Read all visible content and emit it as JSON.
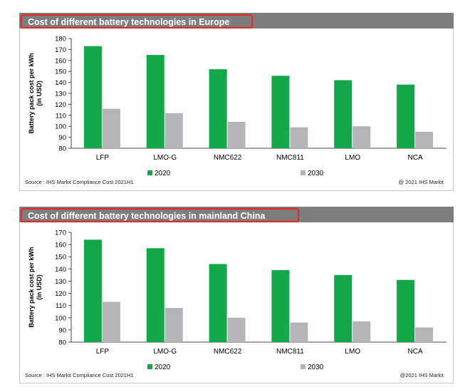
{
  "colors": {
    "series_2020": "#12a84a",
    "series_2030": "#b4b4b6",
    "title_bar": "#7d7d7d",
    "highlight": "#e8262a"
  },
  "charts": [
    {
      "source": "Source : IHS Markit Compliance Cost 2021H1",
      "copyright": "@ 2021 IHS Markit"
    },
    {
      "source": "Source : IHS Markit Compliance Cost 2021H1",
      "copyright": "@2021 IHS Markit"
    }
  ],
  "chart_data": [
    {
      "type": "bar",
      "title": "Cost of different battery technologies in Europe",
      "ylabel": "Battery pack cost per kWh\n(in USD)",
      "categories": [
        "LFP",
        "LMO-G",
        "NMC622",
        "NMC811",
        "LMO",
        "NCA"
      ],
      "series": [
        {
          "name": "2020",
          "values": [
            173,
            165,
            152,
            146,
            142,
            138
          ]
        },
        {
          "name": "2030",
          "values": [
            116,
            112,
            104,
            99,
            100,
            95
          ]
        }
      ],
      "ylim": [
        80,
        180
      ],
      "yticks": [
        80,
        90,
        100,
        110,
        120,
        130,
        140,
        150,
        160,
        170,
        180
      ],
      "legend": "bottom",
      "grid": false
    },
    {
      "type": "bar",
      "title": "Cost of different battery technologies in mainland China",
      "ylabel": "Battery pack cost per kWh\n(in USD)",
      "categories": [
        "LFP",
        "LMO-G",
        "NMC622",
        "NMC811",
        "LMO",
        "NCA"
      ],
      "series": [
        {
          "name": "2020",
          "values": [
            164,
            157,
            144,
            139,
            135,
            131
          ]
        },
        {
          "name": "2030",
          "values": [
            113,
            108,
            100,
            96,
            97,
            92
          ]
        }
      ],
      "ylim": [
        80,
        170
      ],
      "yticks": [
        80,
        90,
        100,
        110,
        120,
        130,
        140,
        150,
        160,
        170
      ],
      "legend": "bottom",
      "grid": false
    }
  ]
}
